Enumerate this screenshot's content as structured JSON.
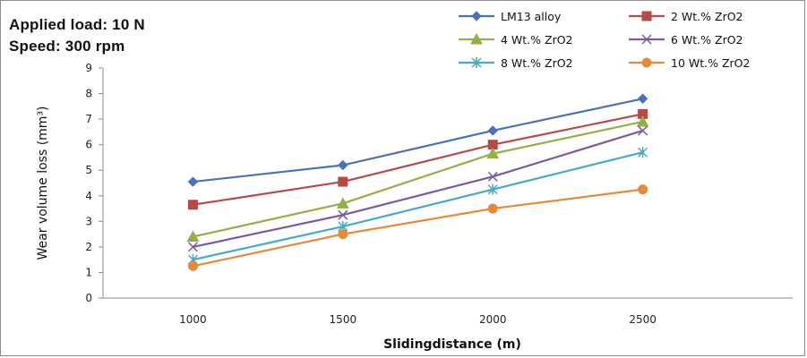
{
  "conditions": {
    "load": "Applied load: 10 N",
    "speed": "Speed: 300 rpm"
  },
  "chart_data": {
    "type": "line",
    "title": "",
    "xlabel": "Slidingdistance (m)",
    "ylabel": "Wear volume loss (mm³)",
    "categories": [
      "1000",
      "1500",
      "2000",
      "2500"
    ],
    "ylim": [
      0,
      9
    ],
    "yticks": [
      "0",
      "1",
      "2",
      "3",
      "4",
      "5",
      "6",
      "7",
      "8",
      "9"
    ],
    "grid": false,
    "legend_position": "top-right",
    "series": [
      {
        "name": "LM13 alloy",
        "values": [
          4.55,
          5.2,
          6.55,
          7.8
        ],
        "color": "#4a72b8",
        "marker": "diamond"
      },
      {
        "name": "2 Wt.% ZrO2",
        "values": [
          3.65,
          4.55,
          6.0,
          7.2
        ],
        "color": "#b84a46",
        "marker": "square"
      },
      {
        "name": "4 Wt.% ZrO2",
        "values": [
          2.4,
          3.7,
          5.65,
          6.9
        ],
        "color": "#90b048",
        "marker": "triangle"
      },
      {
        "name": "6 Wt.% ZrO2",
        "values": [
          2.0,
          3.25,
          4.75,
          6.55
        ],
        "color": "#7a5ba0",
        "marker": "x"
      },
      {
        "name": "8 Wt.% ZrO2",
        "values": [
          1.5,
          2.8,
          4.25,
          5.7
        ],
        "color": "#4aa9c4",
        "marker": "star"
      },
      {
        "name": "10 Wt.% ZrO2",
        "values": [
          1.25,
          2.5,
          3.5,
          4.25
        ],
        "color": "#e48a3a",
        "marker": "circle"
      }
    ]
  }
}
